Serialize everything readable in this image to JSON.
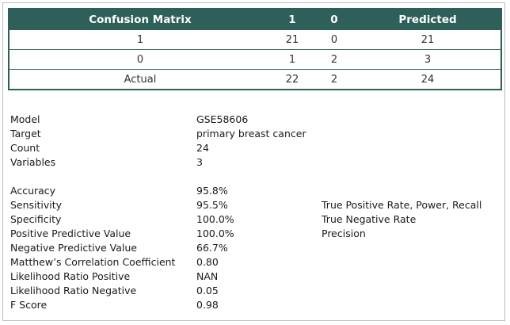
{
  "matrix": {
    "header": [
      "Confusion Matrix",
      "1",
      "0",
      "Predicted"
    ],
    "rows": [
      [
        "1",
        "21",
        "0",
        "21"
      ],
      [
        "0",
        "1",
        "2",
        "3"
      ],
      [
        "Actual",
        "22",
        "2",
        "24"
      ]
    ]
  },
  "info": [
    {
      "label": "Model",
      "value": "GSE58606"
    },
    {
      "label": "Target",
      "value": "primary breast cancer"
    },
    {
      "label": "Count",
      "value": "24"
    },
    {
      "label": "Variables",
      "value": "3"
    }
  ],
  "metrics": [
    {
      "label": "Accuracy",
      "value": "95.8%",
      "note": ""
    },
    {
      "label": "Sensitivity",
      "value": "95.5%",
      "note": "True Positive Rate, Power, Recall"
    },
    {
      "label": "Specificity",
      "value": "100.0%",
      "note": "True Negative Rate"
    },
    {
      "label": "Positive Predictive Value",
      "value": "100.0%",
      "note": "Precision"
    },
    {
      "label": "Negative Predictive Value",
      "value": "66.7%",
      "note": ""
    },
    {
      "label": "Matthew’s Correlation Coefficient",
      "value": "0.80",
      "note": ""
    },
    {
      "label": "Likelihood Ratio Positive",
      "value": "NAN",
      "note": ""
    },
    {
      "label": "Likelihood Ratio Negative",
      "value": "0.05",
      "note": ""
    },
    {
      "label": "F Score",
      "value": "0.98",
      "note": ""
    }
  ],
  "colors": {
    "header_bg": "#2e5f59",
    "header_text": "#ffffff"
  }
}
